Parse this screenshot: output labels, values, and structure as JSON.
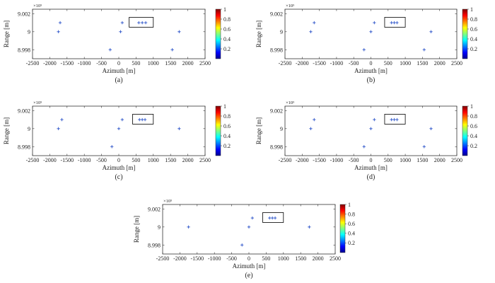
{
  "chart_data": [
    {
      "panel": "(a)",
      "type": "scatter",
      "xlabel": "Azimuth [m]",
      "ylabel": "Range [m]",
      "y_multiplier": "×10⁵",
      "xlim": [
        -2500,
        2500
      ],
      "ylim": [
        8.997,
        9.0025
      ],
      "xticks": [
        -2500,
        -2000,
        -1500,
        -1000,
        -500,
        0,
        500,
        1000,
        1500,
        2000,
        2500
      ],
      "yticks": [
        8.998,
        9,
        9.002
      ],
      "ytick_labels": [
        "8.998",
        "9",
        "9.002"
      ],
      "colorbar": {
        "range": [
          0,
          1
        ],
        "ticks": [
          "0.2",
          "0.4",
          "0.6",
          "0.8",
          "1"
        ]
      },
      "zoom_box": {
        "x": [
          300,
          1000
        ],
        "y": [
          9.0005,
          9.0016
        ]
      },
      "points": [
        {
          "x": -1700,
          "y": 9.001
        },
        {
          "x": -1750,
          "y": 9.0
        },
        {
          "x": 50,
          "y": 9.0
        },
        {
          "x": 100,
          "y": 9.001
        },
        {
          "x": -250,
          "y": 8.998
        },
        {
          "x": 1550,
          "y": 8.998
        },
        {
          "x": 1750,
          "y": 9.0
        },
        {
          "x": 580,
          "y": 9.001
        },
        {
          "x": 680,
          "y": 9.001
        },
        {
          "x": 780,
          "y": 9.001
        }
      ]
    },
    {
      "panel": "(b)",
      "type": "scatter",
      "xlabel": "Azimuth [m]",
      "ylabel": "Range [m]",
      "y_multiplier": "×10⁵",
      "xlim": [
        -2500,
        2500
      ],
      "ylim": [
        8.997,
        9.0025
      ],
      "xticks": [
        -2500,
        -2000,
        -1500,
        -1000,
        -500,
        0,
        500,
        1000,
        1500,
        2000,
        2500
      ],
      "yticks": [
        8.998,
        9,
        9.002
      ],
      "ytick_labels": [
        "8.998",
        "9",
        "9.002"
      ],
      "colorbar": {
        "range": [
          0,
          1
        ],
        "ticks": [
          "0.2",
          "0.4",
          "0.6",
          "0.8",
          "1"
        ]
      },
      "zoom_box": {
        "x": [
          400,
          1000
        ],
        "y": [
          9.0005,
          9.0016
        ]
      },
      "points": [
        {
          "x": -1650,
          "y": 9.001
        },
        {
          "x": -1750,
          "y": 9.0
        },
        {
          "x": 0,
          "y": 9.0
        },
        {
          "x": 100,
          "y": 9.001
        },
        {
          "x": -200,
          "y": 8.998
        },
        {
          "x": 1550,
          "y": 8.998
        },
        {
          "x": 1750,
          "y": 9.0
        },
        {
          "x": 600,
          "y": 9.001
        },
        {
          "x": 680,
          "y": 9.001
        },
        {
          "x": 760,
          "y": 9.001
        }
      ]
    },
    {
      "panel": "(c)",
      "type": "scatter",
      "xlabel": "Azimuth [m]",
      "ylabel": "Range [m]",
      "y_multiplier": "×10⁵",
      "xlim": [
        -2500,
        2500
      ],
      "ylim": [
        8.997,
        9.0025
      ],
      "xticks": [
        -2500,
        -2000,
        -1500,
        -1000,
        -500,
        0,
        500,
        1000,
        1500,
        2000,
        2500
      ],
      "yticks": [
        8.998,
        9,
        9.002
      ],
      "ytick_labels": [
        "8.998",
        "9",
        "9.002"
      ],
      "colorbar": {
        "range": [
          0,
          1
        ],
        "ticks": [
          "0.2",
          "0.4",
          "0.6",
          "0.8",
          "1"
        ]
      },
      "zoom_box": {
        "x": [
          400,
          1000
        ],
        "y": [
          9.0005,
          9.0016
        ]
      },
      "points": [
        {
          "x": -1650,
          "y": 9.001
        },
        {
          "x": -1750,
          "y": 9.0
        },
        {
          "x": 0,
          "y": 9.0
        },
        {
          "x": 100,
          "y": 9.001
        },
        {
          "x": -200,
          "y": 8.998
        },
        {
          "x": 1750,
          "y": 9.0
        },
        {
          "x": 600,
          "y": 9.001
        },
        {
          "x": 680,
          "y": 9.001
        },
        {
          "x": 760,
          "y": 9.001
        }
      ]
    },
    {
      "panel": "(d)",
      "type": "scatter",
      "xlabel": "Azimuth [m]",
      "ylabel": "Range [m]",
      "y_multiplier": "×10⁵",
      "xlim": [
        -2500,
        2500
      ],
      "ylim": [
        8.997,
        9.0025
      ],
      "xticks": [
        -2500,
        -2000,
        -1500,
        -1000,
        -500,
        0,
        500,
        1000,
        1500,
        2000,
        2500
      ],
      "yticks": [
        8.998,
        9,
        9.002
      ],
      "ytick_labels": [
        "8.998",
        "9",
        "9.002"
      ],
      "colorbar": {
        "range": [
          0,
          1
        ],
        "ticks": [
          "0.2",
          "0.4",
          "0.6",
          "0.8",
          "1"
        ]
      },
      "zoom_box": {
        "x": [
          400,
          1000
        ],
        "y": [
          9.0005,
          9.0016
        ]
      },
      "points": [
        {
          "x": -1650,
          "y": 9.001
        },
        {
          "x": -1750,
          "y": 9.0
        },
        {
          "x": 0,
          "y": 9.0
        },
        {
          "x": 100,
          "y": 9.001
        },
        {
          "x": -200,
          "y": 8.998
        },
        {
          "x": 1550,
          "y": 8.998
        },
        {
          "x": 1750,
          "y": 9.0
        },
        {
          "x": 600,
          "y": 9.001
        },
        {
          "x": 680,
          "y": 9.001
        },
        {
          "x": 760,
          "y": 9.001
        }
      ]
    },
    {
      "panel": "(e)",
      "type": "scatter",
      "xlabel": "Azimuth [m]",
      "ylabel": "Range [m]",
      "y_multiplier": "×10⁵",
      "xlim": [
        -2500,
        2500
      ],
      "ylim": [
        8.997,
        9.0025
      ],
      "xticks": [
        -2500,
        -2000,
        -1500,
        -1000,
        -500,
        0,
        500,
        1000,
        1500,
        2000,
        2500
      ],
      "yticks": [
        8.998,
        9,
        9.002
      ],
      "ytick_labels": [
        "8.998",
        "9",
        "9.002"
      ],
      "colorbar": {
        "range": [
          0,
          1
        ],
        "ticks": [
          "0.2",
          "0.4",
          "0.6",
          "0.8",
          "1"
        ]
      },
      "zoom_box": {
        "x": [
          400,
          1000
        ],
        "y": [
          9.0005,
          9.0016
        ]
      },
      "points": [
        {
          "x": -1750,
          "y": 9.0
        },
        {
          "x": 0,
          "y": 9.0
        },
        {
          "x": 100,
          "y": 9.001
        },
        {
          "x": -200,
          "y": 8.998
        },
        {
          "x": 1750,
          "y": 9.0
        },
        {
          "x": 600,
          "y": 9.001
        },
        {
          "x": 680,
          "y": 9.001
        },
        {
          "x": 760,
          "y": 9.001
        }
      ]
    }
  ],
  "colors": {
    "marker": "#3a5fcd",
    "box": "#000000"
  }
}
